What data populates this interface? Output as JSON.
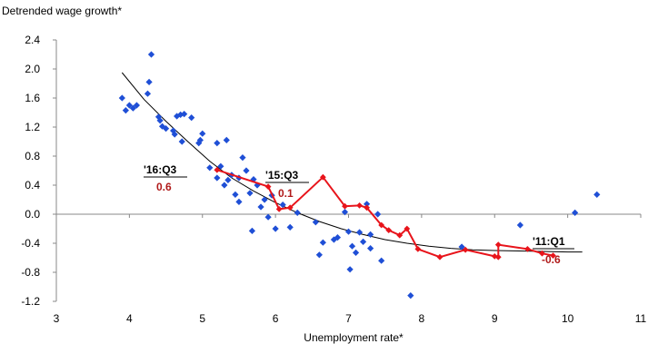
{
  "chart_data": {
    "type": "scatter",
    "title": "",
    "ylabel": "Detrended wage growth*",
    "xlabel": "Unemployment rate*",
    "xlim": [
      3,
      11
    ],
    "ylim": [
      -1.2,
      2.4
    ],
    "xticks": [
      "3",
      "4",
      "5",
      "6",
      "7",
      "8",
      "9",
      "10",
      "11"
    ],
    "yticks": [
      "-1.2",
      "-0.8",
      "-0.4",
      "0.0",
      "0.4",
      "0.8",
      "1.2",
      "1.6",
      "2.0",
      "2.4"
    ],
    "grid": false,
    "colors": {
      "scatter": "#1f4fd6",
      "path": "#e8141b",
      "fit": "#000000",
      "value_labels": "#b01a1a"
    },
    "series": [
      {
        "kind": "scatter",
        "points": [
          [
            3.9,
            1.6
          ],
          [
            3.95,
            1.43
          ],
          [
            4.0,
            1.5
          ],
          [
            4.05,
            1.46
          ],
          [
            4.1,
            1.5
          ],
          [
            4.25,
            1.66
          ],
          [
            4.27,
            1.82
          ],
          [
            4.3,
            2.2
          ],
          [
            4.4,
            1.34
          ],
          [
            4.42,
            1.29
          ],
          [
            4.45,
            1.21
          ],
          [
            4.5,
            1.18
          ],
          [
            4.6,
            1.15
          ],
          [
            4.62,
            1.1
          ],
          [
            4.65,
            1.35
          ],
          [
            4.7,
            1.37
          ],
          [
            4.72,
            1.0
          ],
          [
            4.75,
            1.38
          ],
          [
            4.85,
            1.33
          ],
          [
            4.95,
            0.98
          ],
          [
            4.97,
            1.02
          ],
          [
            5.0,
            1.11
          ],
          [
            5.1,
            0.64
          ],
          [
            5.2,
            0.5
          ],
          [
            5.2,
            0.98
          ],
          [
            5.25,
            0.66
          ],
          [
            5.3,
            0.4
          ],
          [
            5.33,
            1.02
          ],
          [
            5.35,
            0.47
          ],
          [
            5.4,
            0.54
          ],
          [
            5.45,
            0.27
          ],
          [
            5.5,
            0.5
          ],
          [
            5.5,
            0.17
          ],
          [
            5.55,
            0.78
          ],
          [
            5.6,
            0.6
          ],
          [
            5.65,
            0.29
          ],
          [
            5.68,
            -0.23
          ],
          [
            5.7,
            0.48
          ],
          [
            5.75,
            0.4
          ],
          [
            5.8,
            0.1
          ],
          [
            5.85,
            0.2
          ],
          [
            5.9,
            -0.04
          ],
          [
            5.95,
            0.26
          ],
          [
            6.0,
            -0.2
          ],
          [
            6.1,
            0.13
          ],
          [
            6.2,
            -0.18
          ],
          [
            6.3,
            0.02
          ],
          [
            6.55,
            -0.11
          ],
          [
            6.6,
            -0.56
          ],
          [
            6.65,
            -0.39
          ],
          [
            6.8,
            -0.35
          ],
          [
            6.85,
            -0.32
          ],
          [
            6.95,
            0.03
          ],
          [
            7.0,
            -0.24
          ],
          [
            7.05,
            -0.44
          ],
          [
            7.02,
            -0.76
          ],
          [
            7.1,
            -0.53
          ],
          [
            7.15,
            -0.25
          ],
          [
            7.2,
            -0.38
          ],
          [
            7.25,
            0.14
          ],
          [
            7.3,
            -0.47
          ],
          [
            7.3,
            -0.28
          ],
          [
            7.4,
            0.0
          ],
          [
            7.45,
            -0.64
          ],
          [
            7.85,
            -1.12
          ],
          [
            8.55,
            -0.45
          ],
          [
            9.35,
            -0.15
          ],
          [
            10.1,
            0.02
          ],
          [
            10.4,
            0.27
          ]
        ]
      },
      {
        "kind": "path",
        "points": [
          [
            5.2,
            0.61
          ],
          [
            5.9,
            0.38
          ],
          [
            6.05,
            0.07
          ],
          [
            6.2,
            0.09
          ],
          [
            6.65,
            0.51
          ],
          [
            6.95,
            0.11
          ],
          [
            7.15,
            0.12
          ],
          [
            7.25,
            0.09
          ],
          [
            7.45,
            -0.15
          ],
          [
            7.55,
            -0.22
          ],
          [
            7.7,
            -0.29
          ],
          [
            7.8,
            -0.2
          ],
          [
            7.95,
            -0.48
          ],
          [
            8.25,
            -0.59
          ],
          [
            8.6,
            -0.49
          ],
          [
            9.0,
            -0.58
          ],
          [
            9.05,
            -0.59
          ],
          [
            9.05,
            -0.42
          ],
          [
            9.45,
            -0.48
          ],
          [
            9.65,
            -0.54
          ],
          [
            9.8,
            -0.57
          ]
        ]
      },
      {
        "kind": "fit",
        "points": [
          [
            3.9,
            1.95
          ],
          [
            4.2,
            1.58
          ],
          [
            4.5,
            1.28
          ],
          [
            4.8,
            1.0
          ],
          [
            5.1,
            0.73
          ],
          [
            5.4,
            0.5
          ],
          [
            5.7,
            0.32
          ],
          [
            6.0,
            0.16
          ],
          [
            6.3,
            0.02
          ],
          [
            6.6,
            -0.1
          ],
          [
            6.9,
            -0.2
          ],
          [
            7.2,
            -0.28
          ],
          [
            7.5,
            -0.35
          ],
          [
            7.8,
            -0.4
          ],
          [
            8.1,
            -0.44
          ],
          [
            8.4,
            -0.47
          ],
          [
            8.7,
            -0.49
          ],
          [
            9.0,
            -0.5
          ],
          [
            9.5,
            -0.51
          ],
          [
            10.0,
            -0.52
          ],
          [
            10.2,
            -0.52
          ]
        ]
      }
    ],
    "annotations": [
      {
        "label": "'16:Q3",
        "value": "0.6"
      },
      {
        "label": "'15:Q3",
        "value": "0.1"
      },
      {
        "label": "'11:Q1",
        "value": "-0.6"
      }
    ]
  }
}
